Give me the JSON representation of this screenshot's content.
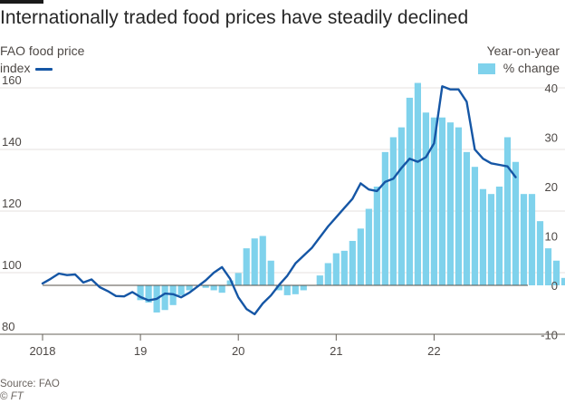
{
  "header": {
    "title": "Internationally traded food prices have steadily declined"
  },
  "legend": {
    "left_line1": "FAO food price",
    "left_line2": "index",
    "right_line1": "Year-on-year",
    "right_line2": "% change"
  },
  "footer": {
    "source": "Source: FAO",
    "credit_symbol": "©",
    "credit_brand": "FT"
  },
  "colors": {
    "line": "#1556a5",
    "bar": "#7fd2ec",
    "grid": "#e6e2df",
    "zero": "#555049",
    "tick_text": "#4d4845"
  },
  "chart_data": {
    "type": "bar+line",
    "title": "Internationally traded food prices have steadily declined",
    "x_tick_labels": [
      "2018",
      "19",
      "20",
      "21",
      "22"
    ],
    "x_start": "2018-01",
    "x_end": "2022-12",
    "left_axis": {
      "label": "FAO food price index",
      "ticks": [
        80,
        100,
        120,
        140,
        160
      ],
      "range": [
        80,
        165
      ]
    },
    "right_axis": {
      "label": "Year-on-year % change",
      "ticks": [
        -10,
        0,
        10,
        20,
        30,
        40
      ],
      "range": [
        -10,
        43
      ]
    },
    "series": [
      {
        "name": "FAO food price index",
        "kind": "line",
        "axis": "left",
        "values": [
          96.5,
          98.0,
          99.7,
          99.2,
          99.4,
          96.8,
          97.8,
          95.3,
          94.0,
          92.4,
          92.3,
          93.7,
          92.1,
          91.0,
          91.5,
          93.2,
          93.0,
          92.0,
          93.5,
          95.5,
          97.5,
          100.0,
          101.8,
          98.0,
          92.0,
          88.2,
          86.5,
          90.0,
          92.6,
          96.0,
          99.0,
          103.0,
          105.5,
          108.0,
          111.5,
          115.0,
          118.0,
          121.0,
          124.0,
          129.0,
          127.0,
          126.5,
          129.5,
          130.5,
          134.0,
          137.0,
          136.0,
          137.5,
          142.0,
          160.5,
          159.5,
          159.5,
          155.5,
          140.0,
          137.0,
          135.5,
          135.0,
          134.5,
          131.0
        ],
        "start": "2018-01"
      },
      {
        "name": "Year-on-year % change",
        "kind": "bar",
        "axis": "right",
        "values": [
          -3.0,
          -3.5,
          -5.5,
          -5.0,
          -4.0,
          -2.0,
          -1.0,
          0.0,
          -0.5,
          -1.0,
          -1.5,
          1.0,
          2.5,
          7.5,
          9.5,
          10.0,
          5.0,
          -1.0,
          -2.0,
          -1.8,
          -1.0,
          0.0,
          2.0,
          4.5,
          6.5,
          7.0,
          9.0,
          11.5,
          15.5,
          20.0,
          27.0,
          30.0,
          32.0,
          38.0,
          41.0,
          35.0,
          34.0,
          34.0,
          33.0,
          32.0,
          27.0,
          24.0,
          19.5,
          18.5,
          20.0,
          30.0,
          25.0,
          18.5,
          18.5,
          13.0,
          7.5,
          5.0,
          1.5,
          -1.0
        ],
        "start": "2019-01"
      }
    ]
  }
}
